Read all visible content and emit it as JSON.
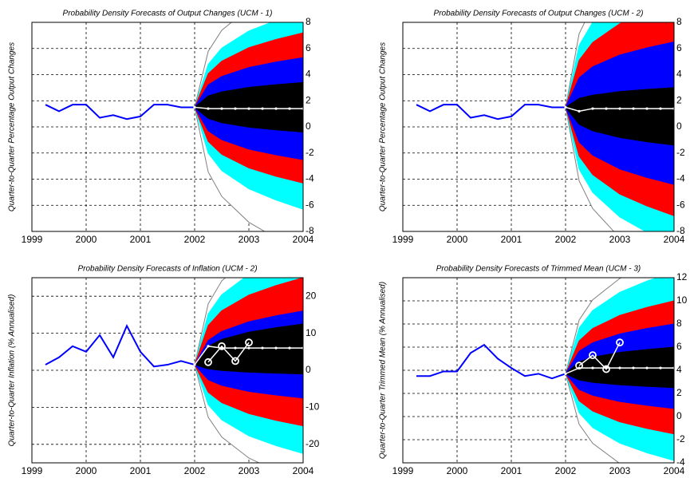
{
  "chart_data": [
    {
      "type": "fan",
      "title": "Probability Density Forecasts of Output Changes (UCM - 1)",
      "ylabel": "Quarter-to-Quarter Percentage Output Changes",
      "xlim": [
        1999,
        2004
      ],
      "xticks": [
        1999,
        2000,
        2001,
        2002,
        2003,
        2004
      ],
      "ylim": [
        -8,
        8
      ],
      "yticks": [
        -8,
        -6,
        -4,
        -2,
        0,
        2,
        4,
        6,
        8
      ],
      "grid": true,
      "history": {
        "color": "#0000ff",
        "x": [
          1999.25,
          1999.5,
          1999.75,
          2000,
          2000.25,
          2000.5,
          2000.75,
          2001,
          2001.25,
          2001.5,
          2001.75,
          2002
        ],
        "values": [
          1.7,
          1.2,
          1.7,
          1.7,
          0.7,
          0.9,
          0.6,
          0.8,
          1.7,
          1.7,
          1.5,
          1.5
        ]
      },
      "median": {
        "color": "#ffffff",
        "x": [
          2002,
          2002.25,
          2002.5,
          2002.75,
          2003,
          2003.25,
          2003.5,
          2003.75,
          2004
        ],
        "values": [
          1.5,
          1.4,
          1.4,
          1.4,
          1.4,
          1.4,
          1.4,
          1.4,
          1.4
        ]
      },
      "fan": {
        "x": [
          2002,
          2002.25,
          2002.5,
          2003,
          2003.5,
          2004
        ],
        "outer": {
          "color": "#808080",
          "upper": [
            1.5,
            5.78,
            7.39,
            9.1,
            10.15,
            11
          ],
          "lower": [
            1.5,
            -3.45,
            -5.32,
            -7.3,
            -8.51,
            -9.5
          ]
        },
        "bands": [
          {
            "color": "#00ffff",
            "upper": [
              1.5,
              4.79,
              6.03,
              7.34,
              8.14,
              8.8
            ],
            "lower": [
              1.5,
              -2.01,
              -3.34,
              -4.74,
              -5.6,
              -6.3
            ]
          },
          {
            "color": "#ff0000",
            "upper": [
              1.5,
              4.07,
              5.03,
              6.06,
              6.69,
              7.2
            ],
            "lower": [
              1.5,
              -1.11,
              -2.1,
              -3.14,
              -3.78,
              -4.3
            ]
          },
          {
            "color": "#0000ff",
            "upper": [
              1.5,
              3.21,
              3.86,
              4.54,
              4.96,
              5.3
            ],
            "lower": [
              1.5,
              -0.3,
              -0.98,
              -1.7,
              -2.14,
              -2.5
            ]
          },
          {
            "color": "#000000",
            "upper": [
              1.5,
              2.36,
              2.68,
              3.02,
              3.23,
              3.4
            ],
            "lower": [
              1.5,
              0.65,
              0.32,
              -0.02,
              -0.23,
              -0.4
            ]
          }
        ]
      }
    },
    {
      "type": "fan",
      "title": "Probability Density Forecasts of Output Changes (UCM - 2)",
      "ylabel": "Quarter-to-Quarter Percentage Output Changes",
      "xlim": [
        1999,
        2004
      ],
      "xticks": [
        1999,
        2000,
        2001,
        2002,
        2003,
        2004
      ],
      "ylim": [
        -8,
        8
      ],
      "yticks": [
        -8,
        -6,
        -4,
        -2,
        0,
        2,
        4,
        6,
        8
      ],
      "grid": true,
      "history": {
        "color": "#0000ff",
        "x": [
          1999.25,
          1999.5,
          1999.75,
          2000,
          2000.25,
          2000.5,
          2000.75,
          2001,
          2001.25,
          2001.5,
          2001.75,
          2002
        ],
        "values": [
          1.7,
          1.2,
          1.7,
          1.7,
          0.7,
          0.9,
          0.6,
          0.8,
          1.7,
          1.7,
          1.5,
          1.5
        ]
      },
      "median": {
        "color": "#ffffff",
        "x": [
          2002,
          2002.25,
          2002.5,
          2002.75,
          2003,
          2003.25,
          2003.5,
          2003.75,
          2004
        ],
        "values": [
          1.5,
          1.2,
          1.4,
          1.4,
          1.4,
          1.4,
          1.4,
          1.4,
          1.4
        ]
      },
      "fan": {
        "x": [
          2002,
          2002.25,
          2002.5,
          2003,
          2003.5,
          2004
        ],
        "outer": {
          "color": "#808080",
          "upper": [
            1.5,
            7.13,
            9.25,
            11.5,
            12.88,
            14
          ],
          "lower": [
            1.5,
            -4.13,
            -6.25,
            -8.5,
            -9.88,
            -11
          ]
        },
        "bands": [
          {
            "color": "#00ffff",
            "upper": [
              1.5,
              6.23,
              8.01,
              9.9,
              11.06,
              12
            ],
            "lower": [
              1.5,
              -3.23,
              -5.01,
              -6.9,
              -8.06,
              -9
            ]
          },
          {
            "color": "#ff0000",
            "upper": [
              1.5,
              5.1,
              6.46,
              7.9,
              8.78,
              9.5
            ],
            "lower": [
              1.5,
              -2.24,
              -3.65,
              -5.14,
              -6.05,
              -6.8
            ]
          },
          {
            "color": "#0000ff",
            "upper": [
              1.5,
              3.75,
              4.6,
              5.5,
              6.05,
              6.5
            ],
            "lower": [
              1.5,
              -1.16,
              -2.16,
              -3.22,
              -3.87,
              -4.4
            ]
          },
          {
            "color": "#000000",
            "upper": [
              1.5,
              2.18,
              2.43,
              2.7,
              2.87,
              3.0
            ],
            "lower": [
              1.5,
              0.2,
              -0.3,
              -0.82,
              -1.14,
              -1.4
            ]
          }
        ]
      }
    },
    {
      "type": "fan",
      "title": "Probability Density Forecasts of Inflation (UCM - 2)",
      "ylabel": "Quarter-to-Quarter Inflation (% Annualised)",
      "xlim": [
        1999,
        2004
      ],
      "xticks": [
        1999,
        2000,
        2001,
        2002,
        2003,
        2004
      ],
      "ylim": [
        -25,
        25
      ],
      "yticks": [
        -20,
        -10,
        0,
        10,
        20
      ],
      "grid": true,
      "history": {
        "color": "#0000ff",
        "x": [
          1999.25,
          1999.5,
          1999.75,
          2000,
          2000.25,
          2000.5,
          2000.75,
          2001,
          2001.25,
          2001.5,
          2001.75,
          2002
        ],
        "values": [
          1.5,
          3.5,
          6.5,
          5,
          9.5,
          3.5,
          12,
          5,
          1,
          1.5,
          2.5,
          1.5
        ]
      },
      "median": {
        "color": "#ffffff",
        "x": [
          2002,
          2002.25,
          2002.5,
          2002.75,
          2003,
          2003.25,
          2003.5,
          2003.75,
          2004
        ],
        "values": [
          1.5,
          6.5,
          6,
          6,
          6,
          6,
          6,
          6,
          6
        ]
      },
      "outturn": {
        "color": "#ffffff",
        "x": [
          2002.25,
          2002.5,
          2002.75,
          2003
        ],
        "values": [
          2.2,
          6.5,
          2.5,
          7.5
        ]
      },
      "fan": {
        "x": [
          2002,
          2002.25,
          2002.5,
          2003,
          2003.5,
          2004
        ],
        "outer": {
          "color": "#808080",
          "upper": [
            1.5,
            17.93,
            24.13,
            30.7,
            34.72,
            38
          ],
          "lower": [
            1.5,
            -12.68,
            -18.03,
            -23.7,
            -27.17,
            -30
          ]
        },
        "bands": [
          {
            "color": "#00ffff",
            "upper": [
              1.5,
              15.23,
              20.41,
              25.9,
              29.26,
              32
            ],
            "lower": [
              1.5,
              -9.3,
              -13.38,
              -17.7,
              -20.34,
              -22.5
            ]
          },
          {
            "color": "#ff0000",
            "upper": [
              1.5,
              12.08,
              16.07,
              20.3,
              22.89,
              25
            ],
            "lower": [
              1.5,
              -5.93,
              -8.73,
              -11.7,
              -13.52,
              -15
            ]
          },
          {
            "color": "#0000ff",
            "upper": [
              1.5,
              8.03,
              10.49,
              13.1,
              14.7,
              16
            ],
            "lower": [
              1.5,
              -2.55,
              -4.08,
              -5.7,
              -6.69,
              -7.5
            ]
          },
          {
            "color": "#000000",
            "upper": [
              1.5,
              6.45,
              8.32,
              10.3,
              11.51,
              12.5
            ],
            "lower": [
              1.5,
              0.38,
              -0.05,
              -0.5,
              -0.78,
              -1
            ]
          }
        ]
      }
    },
    {
      "type": "fan",
      "title": "Probability Density Forecasts of Trimmed Mean (UCM - 3)",
      "ylabel": "Quarter-to-Quarter Trimmed Mean (% Annualised)",
      "xlim": [
        1999,
        2004
      ],
      "xticks": [
        1999,
        2000,
        2001,
        2002,
        2003,
        2004
      ],
      "ylim": [
        -4,
        12
      ],
      "yticks": [
        -4,
        -2,
        0,
        2,
        4,
        6,
        8,
        10,
        12
      ],
      "grid": true,
      "history": {
        "color": "#0000ff",
        "x": [
          1999.25,
          1999.5,
          1999.75,
          2000,
          2000.25,
          2000.5,
          2000.75,
          2001,
          2001.25,
          2001.5,
          2001.75,
          2002
        ],
        "values": [
          3.5,
          3.5,
          3.9,
          3.9,
          5.5,
          6.2,
          5,
          4.2,
          3.5,
          3.7,
          3.3,
          3.7
        ]
      },
      "median": {
        "color": "#ffffff",
        "x": [
          2002,
          2002.25,
          2002.5,
          2002.75,
          2003,
          2003.25,
          2003.5,
          2003.75,
          2004
        ],
        "values": [
          3.7,
          4.2,
          4.2,
          4.2,
          4.2,
          4.2,
          4.2,
          4.2,
          4.2
        ]
      },
      "outturn": {
        "color": "#ffffff",
        "x": [
          2002.25,
          2002.5,
          2002.75,
          2003
        ],
        "values": [
          4.4,
          5.3,
          4.1,
          6.4
        ]
      },
      "fan": {
        "x": [
          2002,
          2002.25,
          2002.5,
          2003,
          2003.5,
          2004
        ],
        "outer": {
          "color": "#808080",
          "upper": [
            3.7,
            8.34,
            10.09,
            11.94,
            13.07,
            14
          ],
          "lower": [
            3.7,
            -0.67,
            -2.31,
            -4.06,
            -5.13,
            -6
          ]
        },
        "bands": [
          {
            "color": "#00ffff",
            "upper": [
              3.7,
              7.66,
              9.16,
              10.74,
              11.71,
              12.5
            ],
            "lower": [
              3.7,
              0.33,
              -0.95,
              -2.3,
              -3.13,
              -3.8
            ]
          },
          {
            "color": "#ff0000",
            "upper": [
              3.7,
              6.54,
              7.61,
              8.74,
              9.43,
              10
            ],
            "lower": [
              3.7,
              1.36,
              0.48,
              -0.46,
              -1.03,
              -1.5
            ]
          },
          {
            "color": "#0000ff",
            "upper": [
              3.7,
              5.64,
              6.37,
              7.14,
              7.61,
              8
            ],
            "lower": [
              3.7,
              2.35,
              1.84,
              1.3,
              0.97,
              0.7
            ]
          },
          {
            "color": "#000000",
            "upper": [
              3.7,
              4.74,
              5.13,
              5.54,
              5.79,
              6
            ],
            "lower": [
              3.7,
              3.16,
              2.96,
              2.74,
              2.61,
              2.5
            ]
          }
        ]
      }
    }
  ]
}
